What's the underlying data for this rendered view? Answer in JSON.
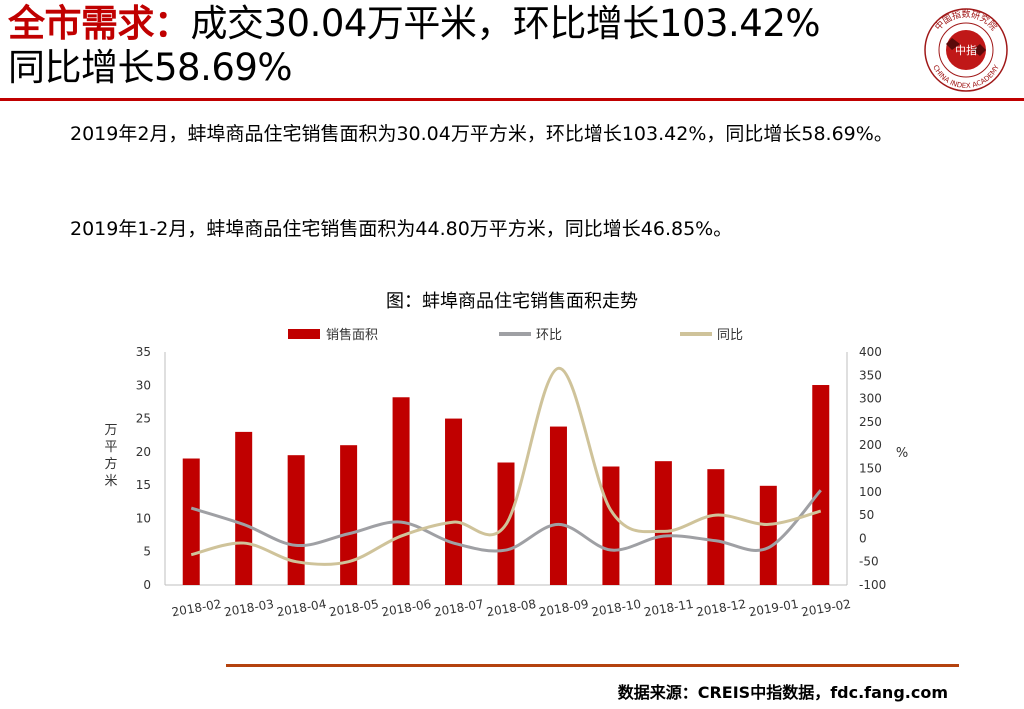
{
  "header": {
    "keyword": "全市需求：",
    "line1_rest": "成交30.04万平米，环比增长103.42%",
    "line2": "同比增长58.69%"
  },
  "logo": {
    "top_text": "中国指数研究院",
    "center_text": "中指",
    "bottom_text": "CHINA INDEX ACADEMY"
  },
  "body": {
    "paragraph1": "2019年2月，蚌埠商品住宅销售面积为30.04万平方米，环比增长103.42%，同比增长58.69%。",
    "paragraph2": "2019年1-2月，蚌埠商品住宅销售面积为44.80万平方米，同比增长46.85%。"
  },
  "footer": {
    "source": "数据来源：CREIS中指数据，fdc.fang.com"
  },
  "colors": {
    "accent": "#c00000",
    "bar": "#c00000",
    "mom_line": "#9fa0a4",
    "yoy_line": "#cfc39a",
    "footer_rule": "#b4420e"
  },
  "chart_data": {
    "type": "bar",
    "title": "图：蚌埠商品住宅销售面积走势",
    "categories": [
      "2018-02",
      "2018-03",
      "2018-04",
      "2018-05",
      "2018-06",
      "2018-07",
      "2018-08",
      "2018-09",
      "2018-10",
      "2018-11",
      "2018-12",
      "2019-01",
      "2019-02"
    ],
    "ylabel": "万平方米",
    "y2label": "%",
    "ylim": [
      0,
      35
    ],
    "y2lim": [
      -100,
      400
    ],
    "yticks": [
      "0",
      "5",
      "10",
      "15",
      "20",
      "25",
      "30",
      "35"
    ],
    "y2ticks": [
      "-100",
      "-50",
      "0",
      "50",
      "100",
      "150",
      "200",
      "250",
      "300",
      "350",
      "400"
    ],
    "legend_position": "top",
    "series": [
      {
        "name": "销售面积",
        "type": "bar",
        "axis": "left",
        "values": [
          19.0,
          23.0,
          19.5,
          21.0,
          28.2,
          25.0,
          18.4,
          23.8,
          17.8,
          18.6,
          17.4,
          14.9,
          30.04
        ]
      },
      {
        "name": "环比",
        "type": "line",
        "axis": "right",
        "values": [
          65,
          30,
          -15,
          10,
          35,
          -10,
          -25,
          30,
          -25,
          5,
          -5,
          -20,
          103.42
        ]
      },
      {
        "name": "同比",
        "type": "line",
        "axis": "right",
        "values": [
          -35,
          -10,
          -50,
          -50,
          5,
          35,
          30,
          365,
          60,
          15,
          50,
          30,
          58.69
        ]
      }
    ]
  }
}
